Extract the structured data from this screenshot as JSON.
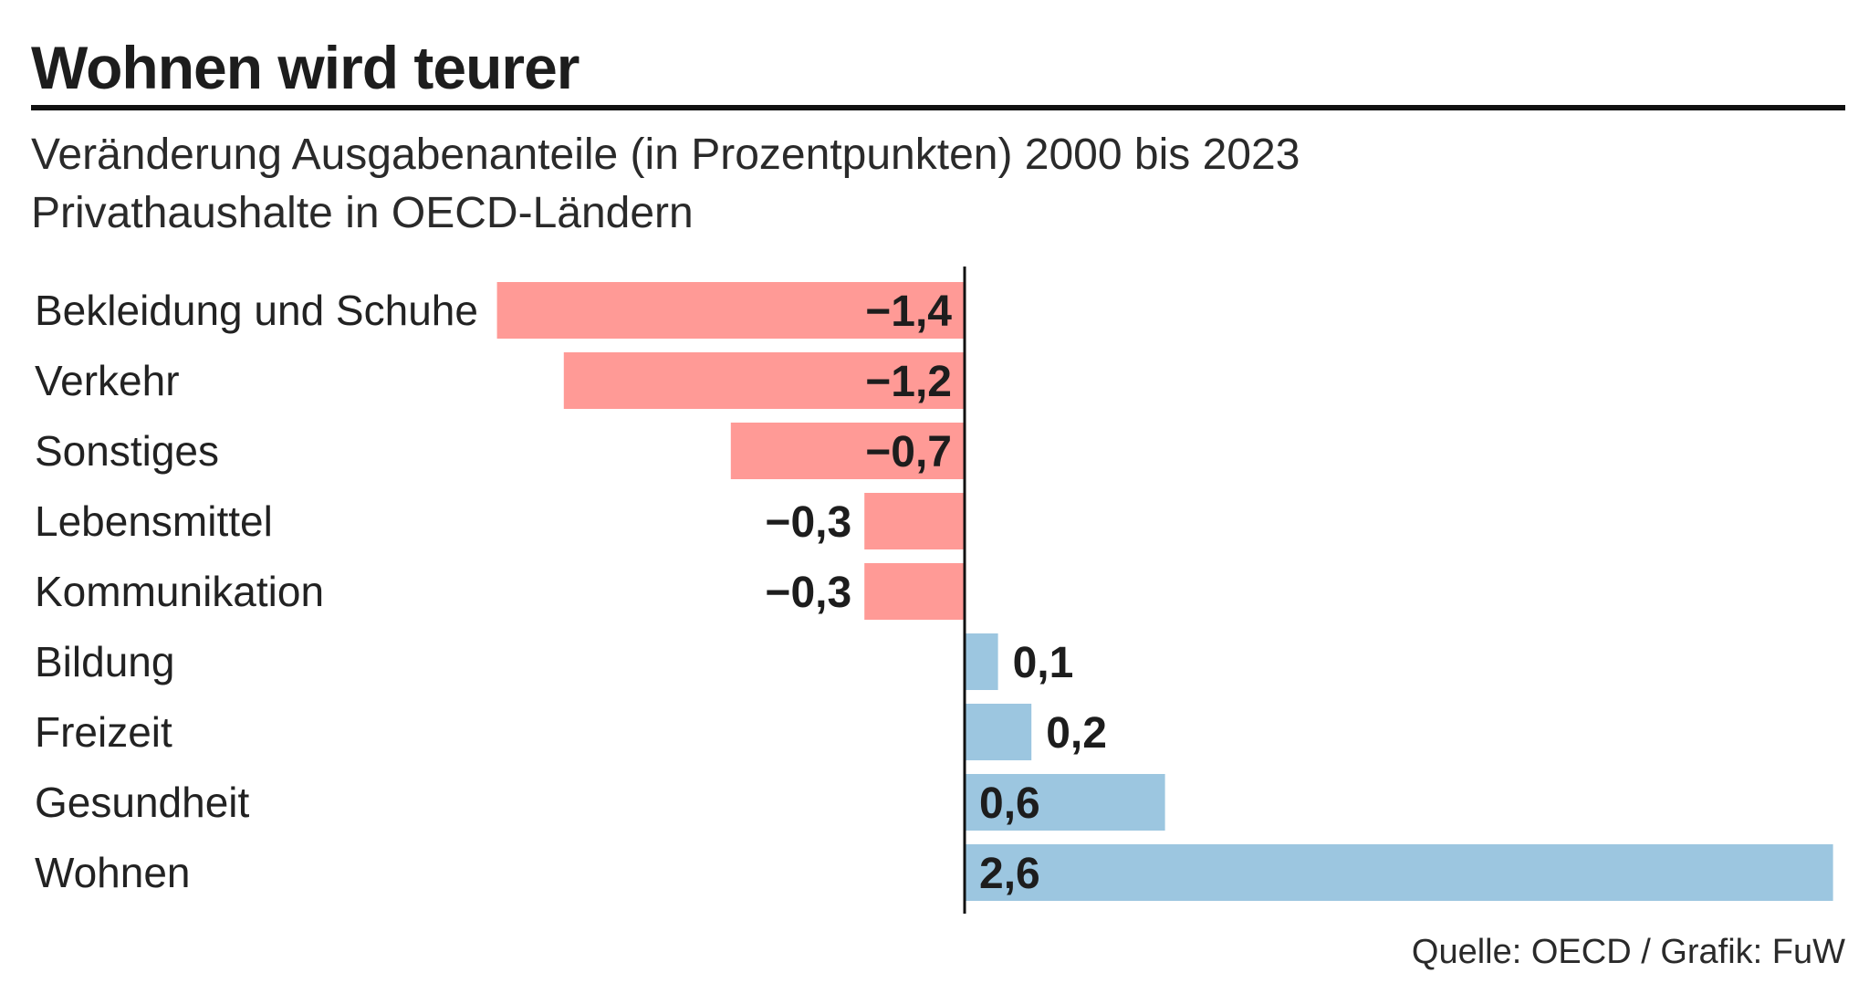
{
  "title": "Wohnen wird teurer",
  "subtitle_line1": "Veränderung Ausgabenanteile (in Prozentpunkten) 2000 bis 2023",
  "subtitle_line2": "Privathaushalte in OECD-Ländern",
  "source": "Quelle: OECD / Grafik: FuW",
  "colors": {
    "negative": "#ff9a96",
    "positive": "#9cc6e0",
    "axis": "#111111",
    "text": "#222222"
  },
  "chart_data": {
    "type": "bar",
    "orientation": "horizontal",
    "title": "Wohnen wird teurer",
    "xlabel": "",
    "ylabel": "",
    "xlim": [
      -1.4,
      2.6
    ],
    "grid": false,
    "categories": [
      "Bekleidung und Schuhe",
      "Verkehr",
      "Sonstiges",
      "Lebensmittel",
      "Kommunikation",
      "Bildung",
      "Freizeit",
      "Gesundheit",
      "Wohnen"
    ],
    "values": [
      -1.4,
      -1.2,
      -0.7,
      -0.3,
      -0.3,
      0.1,
      0.2,
      0.6,
      2.6
    ],
    "value_labels": [
      "−1,4",
      "−1,2",
      "−0,7",
      "−0,3",
      "−0,3",
      "0,1",
      "0,2",
      "0,6",
      "2,6"
    ]
  }
}
